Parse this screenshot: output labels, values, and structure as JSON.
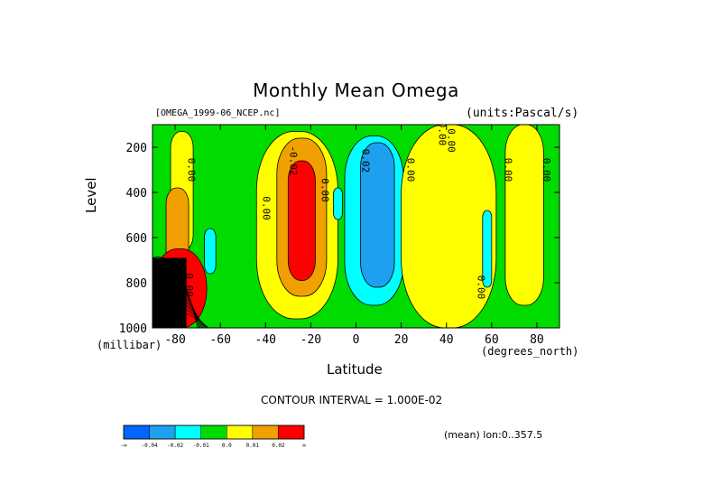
{
  "header": {
    "title": "Monthly Mean Omega",
    "file_label": "[OMEGA_1999-06_NCEP.nc]",
    "units_label": "(units:Pascal/s)"
  },
  "axes": {
    "ylabel": "Level",
    "yunit": "(millibar)",
    "xlabel": "Latitude",
    "xunit": "(degrees_north)"
  },
  "footer": {
    "contour_note": "CONTOUR INTERVAL = 1.000E-02",
    "mean_note": "(mean) lon:0..357.5"
  },
  "colors": {
    "c_neg_inf": "#0066ff",
    "c_m004": "#1ea0f0",
    "c_m002": "#00ffff",
    "c_m001": "#00dc00",
    "c_0": "#ffff00",
    "c_001": "#f0a000",
    "c_002": "#ff0000",
    "missing": "#000000"
  },
  "chart_data": {
    "type": "contour",
    "title": "Monthly Mean Omega",
    "variable": "OMEGA",
    "units": "Pascal/s",
    "xlabel": "Latitude",
    "xunit": "degrees_north",
    "ylabel": "Level",
    "yunit": "millibar",
    "xlim": [
      -90,
      90
    ],
    "ylim": [
      1000,
      100
    ],
    "x_ticks": [
      -80,
      -60,
      -40,
      -20,
      0,
      20,
      40,
      60,
      80
    ],
    "y_ticks": [
      200,
      400,
      600,
      800,
      1000
    ],
    "contour_interval": 0.01,
    "contour_labels": [
      "0.00",
      "0.00",
      "0.00",
      "-0.02",
      "0.02",
      "0.00",
      "0.00",
      "0.00",
      "0.00",
      "0.00",
      "0.00",
      "0.00"
    ],
    "colorbar": {
      "labels": [
        "-∞",
        "-0.04",
        "-0.02",
        "-0.01",
        "0.0",
        "0.01",
        "0.02",
        "∞"
      ],
      "colors": [
        "#0066ff",
        "#1ea0f0",
        "#00ffff",
        "#00dc00",
        "#ffff00",
        "#f0a000",
        "#ff0000"
      ]
    },
    "regions": [
      {
        "value_class": "0.0",
        "lat": [
          -82,
          -72
        ],
        "level": [
          130,
          660
        ]
      },
      {
        "value_class": "0.01",
        "lat": [
          -84,
          -74
        ],
        "level": [
          380,
          780
        ]
      },
      {
        "value_class": "0.02",
        "lat": [
          -90,
          -66
        ],
        "level": [
          650,
          1000
        ]
      },
      {
        "value_class": "-0.02",
        "lat": [
          -67,
          -62
        ],
        "level": [
          560,
          760
        ]
      },
      {
        "value_class": "0.0",
        "lat": [
          -44,
          -8
        ],
        "level": [
          130,
          960
        ]
      },
      {
        "value_class": "0.01",
        "lat": [
          -35,
          -13
        ],
        "level": [
          160,
          860
        ]
      },
      {
        "value_class": "0.02",
        "lat": [
          -30,
          -18
        ],
        "level": [
          260,
          790
        ]
      },
      {
        "value_class": "-0.02",
        "lat": [
          -10,
          -6
        ],
        "level": [
          380,
          520
        ]
      },
      {
        "value_class": "-0.02",
        "lat": [
          -5,
          21
        ],
        "level": [
          150,
          900
        ]
      },
      {
        "value_class": "-0.04",
        "lat": [
          2,
          17
        ],
        "level": [
          180,
          820
        ]
      },
      {
        "value_class": "0.0",
        "lat": [
          20,
          62
        ],
        "level": [
          100,
          1000
        ]
      },
      {
        "value_class": "-0.02",
        "lat": [
          56,
          60
        ],
        "level": [
          480,
          820
        ]
      },
      {
        "value_class": "0.0",
        "lat": [
          66,
          83
        ],
        "level": [
          100,
          900
        ]
      },
      {
        "value_class": "missing",
        "lat": [
          -90,
          -75
        ],
        "level": [
          690,
          1000
        ]
      }
    ]
  }
}
